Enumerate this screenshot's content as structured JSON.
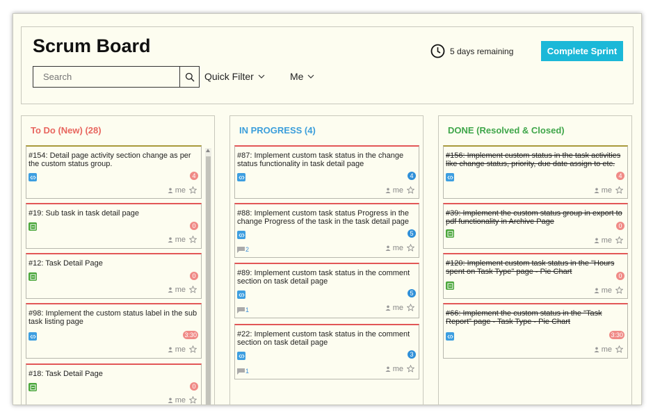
{
  "header": {
    "title": "Scrum Board",
    "search_placeholder": "Search",
    "quick_filter_label": "Quick Filter",
    "me_filter_label": "Me",
    "remaining_text": "5 days remaining",
    "complete_sprint_label": "Complete Sprint"
  },
  "columns": [
    {
      "title": "To Do (New) (28)",
      "title_color": "#e8665f",
      "cards": [
        {
          "text": "#154: Detail page activity section change as per the custom status group.",
          "type": "code-icon",
          "badge": "4",
          "badge_color": "red",
          "assignee": "me",
          "border_color": "#a89a3a"
        },
        {
          "text": "#19: Sub task in task detail page",
          "type": "subtask-icon",
          "badge": "0",
          "badge_color": "red",
          "assignee": "me",
          "border_color": "#e25656"
        },
        {
          "text": "#12: Task Detail Page",
          "type": "subtask-icon",
          "badge": "0",
          "badge_color": "red",
          "assignee": "me",
          "border_color": "#e25656"
        },
        {
          "text": "#98: Implement the custom status label in the sub task listing page",
          "type": "code-icon",
          "badge": "3:30",
          "badge_color": "red",
          "assignee": "me",
          "border_color": "#e25656"
        },
        {
          "text": "#18: Task Detail Page",
          "type": "subtask-icon",
          "badge": "0",
          "badge_color": "red",
          "assignee": "me",
          "border_color": "#e25656"
        }
      ]
    },
    {
      "title": "IN PROGRESS (4)",
      "title_color": "#3b9edb",
      "cards": [
        {
          "text": "#87: Implement custom task status in the change status functionality in task detail page",
          "type": "code-icon",
          "badge": "4",
          "badge_color": "blue",
          "assignee": "me",
          "comments": "",
          "border_color": "#e25656"
        },
        {
          "text": "#88: Implement custom task status Progress in the change Progress of the task in the task detail page",
          "type": "code-icon",
          "badge": "5",
          "badge_color": "blue",
          "assignee": "me",
          "comments": "2",
          "border_color": "#e25656"
        },
        {
          "text": "#89: Implement custom task status in the comment section on task detail page",
          "type": "code-icon",
          "badge": "5",
          "badge_color": "blue",
          "assignee": "me",
          "comments": "1",
          "border_color": "#e25656"
        },
        {
          "text": "#22: Implement custom task status in the comment section on task detail page",
          "type": "code-icon",
          "badge": "3",
          "badge_color": "blue",
          "assignee": "me",
          "comments": "1",
          "border_color": "#e25656"
        }
      ]
    },
    {
      "title": "DONE (Resolved & Closed)",
      "title_color": "#3fa64a",
      "cards": [
        {
          "text": "#156: Implement custom status in the task activities like change status, priority, due date assign to etc.",
          "type": "code-icon",
          "badge": "4",
          "badge_color": "red",
          "assignee": "me",
          "border_color": "#a89a3a"
        },
        {
          "text": "#39: Implement the custom status group in export to pdf functionality in Archive Page",
          "type": "subtask-icon",
          "badge": "0",
          "badge_color": "red",
          "assignee": "me",
          "border_color": "#e25656"
        },
        {
          "text": "#120: Implement custom task status in the \"Hours spent on Task Type\" page - Pie Chart",
          "type": "subtask-icon",
          "badge": "0",
          "badge_color": "red",
          "assignee": "me",
          "border_color": "#e25656"
        },
        {
          "text": "#66: Implement the custom status in the \"Task Report\" page - Task Type - Pie Chart",
          "type": "code-icon",
          "badge": "3:30",
          "badge_color": "red",
          "assignee": "me",
          "border_color": "#e25656"
        }
      ]
    }
  ]
}
